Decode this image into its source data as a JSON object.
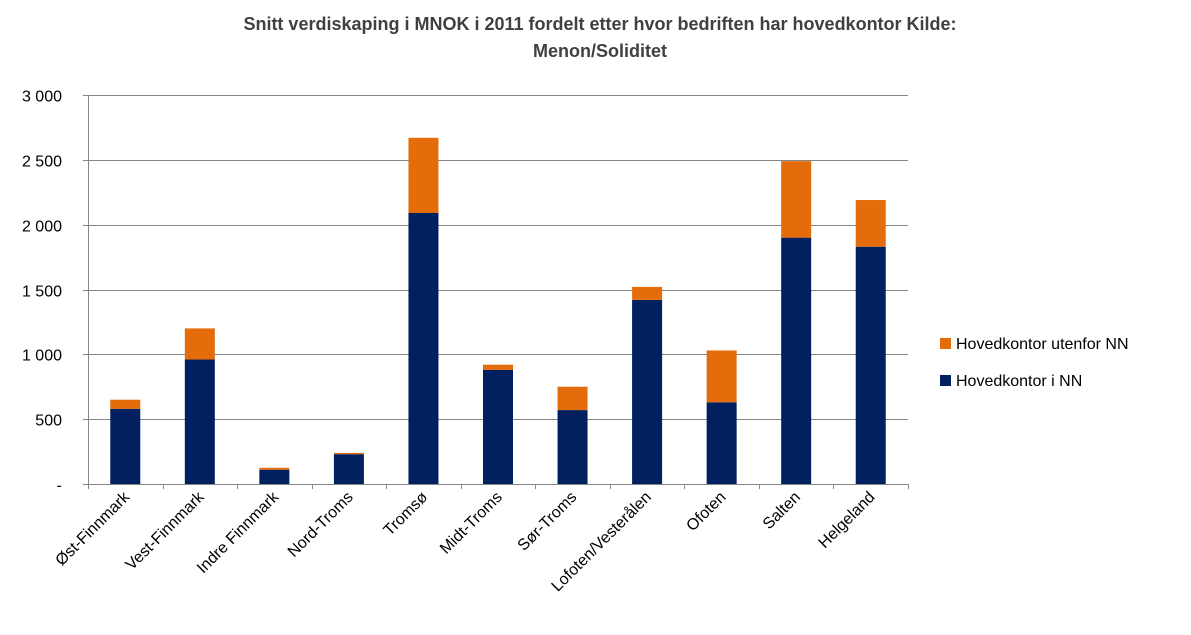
{
  "chart_data": {
    "type": "bar",
    "stacked": true,
    "title_line1": "Snitt verdiskaping  i MNOK i 2011 fordelt etter hvor bedriften har hovedkontor Kilde:",
    "title_line2": "Menon/Soliditet",
    "xlabel": "",
    "ylabel": "",
    "ylim": [
      0,
      3000
    ],
    "y_ticks": [
      {
        "value": 0,
        "label": "-"
      },
      {
        "value": 500,
        "label": "500"
      },
      {
        "value": 1000,
        "label": "1 000"
      },
      {
        "value": 1500,
        "label": "1 500"
      },
      {
        "value": 2000,
        "label": "2 000"
      },
      {
        "value": 2500,
        "label": "2 500"
      },
      {
        "value": 3000,
        "label": "3 000"
      }
    ],
    "grid": true,
    "legend_position": "right",
    "categories": [
      "Øst-Finnmark",
      "Vest-Finnmark",
      "Indre Finnmark",
      "Nord-Troms",
      "Tromsø",
      "Midt-Troms",
      "Sør-Troms",
      "Lofoten/Vesterålen",
      "Ofoten",
      "Salten",
      "Helgeland"
    ],
    "series": [
      {
        "name": "Hovedkontor i NN",
        "color": "#002060",
        "values": [
          580,
          960,
          110,
          230,
          2090,
          880,
          570,
          1420,
          630,
          1900,
          1830
        ]
      },
      {
        "name": "Hovedkontor utenfor NN",
        "color": "#E46C0A",
        "values": [
          70,
          240,
          15,
          10,
          580,
          40,
          180,
          100,
          400,
          590,
          360
        ]
      }
    ],
    "legend_order": [
      1,
      0
    ]
  }
}
